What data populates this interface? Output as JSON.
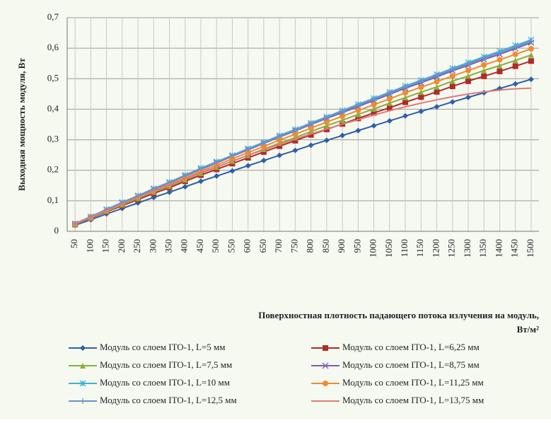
{
  "chart_data": {
    "type": "line",
    "ylabel": "Выходная мощность модуля,  Вт",
    "xlabel": [
      "Поверхностная плотность падающего  потока излучения  на модуль,",
      "Вт/м²"
    ],
    "categories": [
      "50",
      "100",
      "150",
      "200",
      "250",
      "300",
      "350",
      "400",
      "450",
      "500",
      "550",
      "600",
      "650",
      "700",
      "750",
      "800",
      "850",
      "900",
      "950",
      "1000",
      "1050",
      "1100",
      "1150",
      "1200",
      "1250",
      "1300",
      "1350",
      "1400",
      "1450",
      "1500"
    ],
    "ylim": [
      0,
      0.7
    ],
    "yticks": [
      0,
      {
        "value": 0.1,
        "label": "0,1"
      },
      {
        "value": 0.2,
        "label": "0,2"
      },
      {
        "value": 0.3,
        "label": "0,3"
      },
      {
        "value": 0.4,
        "label": "0,4"
      },
      {
        "value": 0.5,
        "label": "0,5"
      },
      {
        "value": 0.6,
        "label": "0,6"
      },
      {
        "value": 0.7,
        "label": "0,7"
      }
    ],
    "grid": true,
    "series": [
      {
        "name": "Модуль со слоем ITO-1, L=5 мм",
        "color": "#2e5fa8",
        "marker": "diamond",
        "values": [
          0.02,
          0.038,
          0.057,
          0.075,
          0.093,
          0.111,
          0.128,
          0.146,
          0.164,
          0.181,
          0.198,
          0.215,
          0.232,
          0.249,
          0.265,
          0.282,
          0.298,
          0.314,
          0.33,
          0.346,
          0.362,
          0.378,
          0.393,
          0.408,
          0.424,
          0.439,
          0.454,
          0.468,
          0.483,
          0.498
        ]
      },
      {
        "name": "Модуль со слоем ITO-1, L=6,25 мм",
        "color": "#b22a2a",
        "marker": "square",
        "values": [
          0.022,
          0.043,
          0.064,
          0.084,
          0.104,
          0.124,
          0.143,
          0.164,
          0.184,
          0.203,
          0.222,
          0.241,
          0.26,
          0.279,
          0.297,
          0.316,
          0.334,
          0.352,
          0.37,
          0.388,
          0.405,
          0.423,
          0.44,
          0.457,
          0.475,
          0.492,
          0.508,
          0.524,
          0.541,
          0.558
        ]
      },
      {
        "name": "Модуль со слоем ITO-1, L=7,5 мм",
        "color": "#8aae3c",
        "marker": "triangle",
        "values": [
          0.023,
          0.044,
          0.066,
          0.087,
          0.108,
          0.129,
          0.148,
          0.169,
          0.19,
          0.21,
          0.23,
          0.249,
          0.269,
          0.289,
          0.307,
          0.327,
          0.346,
          0.364,
          0.383,
          0.401,
          0.42,
          0.438,
          0.456,
          0.473,
          0.492,
          0.509,
          0.527,
          0.543,
          0.56,
          0.578
        ]
      },
      {
        "name": "Модуль со слоем ITO-1, L=8,75 мм",
        "color": "#7b5ea7",
        "marker": "x",
        "values": [
          0.025,
          0.047,
          0.071,
          0.093,
          0.115,
          0.138,
          0.159,
          0.181,
          0.203,
          0.224,
          0.246,
          0.267,
          0.288,
          0.309,
          0.329,
          0.35,
          0.37,
          0.389,
          0.409,
          0.429,
          0.449,
          0.469,
          0.487,
          0.506,
          0.526,
          0.544,
          0.563,
          0.58,
          0.599,
          0.618
        ]
      },
      {
        "name": "Модуль со слоем ITO-1, L=10 мм",
        "color": "#3fb2d6",
        "marker": "star",
        "values": [
          0.025,
          0.048,
          0.072,
          0.095,
          0.117,
          0.14,
          0.161,
          0.184,
          0.207,
          0.228,
          0.249,
          0.271,
          0.292,
          0.314,
          0.334,
          0.355,
          0.375,
          0.396,
          0.416,
          0.436,
          0.456,
          0.476,
          0.495,
          0.514,
          0.534,
          0.553,
          0.572,
          0.59,
          0.609,
          0.627
        ]
      },
      {
        "name": "Модуль со слоем ITO-1, L=11,25 мм",
        "color": "#f08b30",
        "marker": "circle",
        "values": [
          0.024,
          0.046,
          0.068,
          0.09,
          0.112,
          0.133,
          0.154,
          0.175,
          0.197,
          0.217,
          0.238,
          0.258,
          0.278,
          0.299,
          0.318,
          0.338,
          0.358,
          0.377,
          0.396,
          0.415,
          0.434,
          0.454,
          0.472,
          0.49,
          0.509,
          0.527,
          0.545,
          0.562,
          0.58,
          0.598
        ]
      },
      {
        "name": "Модуль со слоем ITO-1, L=12,5 мм",
        "color": "#6d8fd0",
        "marker": "plus",
        "values": [
          0.025,
          0.048,
          0.071,
          0.094,
          0.116,
          0.139,
          0.16,
          0.183,
          0.205,
          0.226,
          0.248,
          0.269,
          0.29,
          0.311,
          0.331,
          0.353,
          0.373,
          0.393,
          0.413,
          0.433,
          0.453,
          0.473,
          0.491,
          0.51,
          0.53,
          0.549,
          0.568,
          0.585,
          0.604,
          0.623
        ]
      },
      {
        "name": "Модуль со слоем ITO-1, L=13,75 мм",
        "color": "#e07a7a",
        "marker": "none",
        "values": [
          0.024,
          0.046,
          0.068,
          0.09,
          0.111,
          0.132,
          0.152,
          0.172,
          0.192,
          0.211,
          0.23,
          0.249,
          0.267,
          0.285,
          0.302,
          0.319,
          0.335,
          0.351,
          0.366,
          0.381,
          0.395,
          0.408,
          0.42,
          0.431,
          0.441,
          0.45,
          0.457,
          0.463,
          0.467,
          0.469
        ]
      }
    ]
  }
}
